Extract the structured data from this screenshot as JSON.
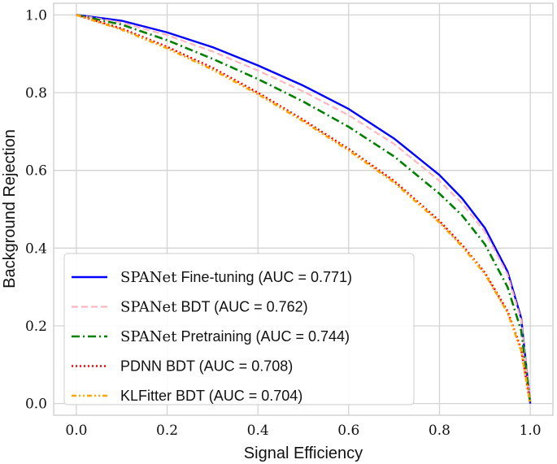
{
  "chart_data": {
    "type": "line",
    "title": "",
    "xlabel": "Signal Efficiency",
    "ylabel": "Background Rejection",
    "xlim": [
      -0.05,
      1.05
    ],
    "ylim": [
      -0.03,
      1.03
    ],
    "xticks": [
      "0.0",
      "0.2",
      "0.4",
      "0.6",
      "0.8",
      "1.0"
    ],
    "yticks": [
      "0.0",
      "0.2",
      "0.4",
      "0.6",
      "0.8",
      "1.0"
    ],
    "grid": true,
    "legend_position": "lower-left",
    "series": [
      {
        "name": "SPANet Fine-tuning (AUC = 0.771)",
        "legend_prefix": "SPANet",
        "legend_suffix": " Fine-tuning (AUC = 0.771)",
        "color": "#0000ff",
        "style": "solid",
        "x": [
          0.0,
          0.1,
          0.2,
          0.3,
          0.4,
          0.5,
          0.6,
          0.7,
          0.8,
          0.85,
          0.9,
          0.95,
          0.98,
          1.0
        ],
        "y": [
          1.0,
          0.985,
          0.955,
          0.917,
          0.87,
          0.818,
          0.758,
          0.682,
          0.588,
          0.528,
          0.452,
          0.34,
          0.22,
          0.0
        ]
      },
      {
        "name": "SPANet BDT (AUC = 0.762)",
        "legend_prefix": "SPANet",
        "legend_suffix": " BDT (AUC = 0.762)",
        "color": "#ffb6c1",
        "style": "dashed",
        "x": [
          0.0,
          0.1,
          0.2,
          0.3,
          0.4,
          0.5,
          0.6,
          0.7,
          0.8,
          0.85,
          0.9,
          0.95,
          0.98,
          1.0
        ],
        "y": [
          1.0,
          0.98,
          0.948,
          0.906,
          0.857,
          0.803,
          0.742,
          0.668,
          0.573,
          0.515,
          0.442,
          0.332,
          0.214,
          0.0
        ]
      },
      {
        "name": "SPANet Pretraining (AUC = 0.744)",
        "legend_prefix": "SPANet",
        "legend_suffix": " Pretraining (AUC = 0.744)",
        "color": "#008000",
        "style": "dashdot",
        "x": [
          0.0,
          0.1,
          0.2,
          0.3,
          0.4,
          0.5,
          0.6,
          0.7,
          0.8,
          0.85,
          0.9,
          0.95,
          0.98,
          1.0
        ],
        "y": [
          1.0,
          0.975,
          0.935,
          0.887,
          0.835,
          0.777,
          0.712,
          0.636,
          0.54,
          0.484,
          0.41,
          0.3,
          0.188,
          0.0
        ]
      },
      {
        "name": "PDNN BDT (AUC = 0.708)",
        "legend_prefix": "",
        "legend_suffix": "PDNN BDT (AUC = 0.708)",
        "color": "#ff0000",
        "style": "dotted",
        "x": [
          0.0,
          0.1,
          0.2,
          0.3,
          0.4,
          0.5,
          0.6,
          0.7,
          0.8,
          0.85,
          0.9,
          0.95,
          0.98,
          1.0
        ],
        "y": [
          1.0,
          0.965,
          0.918,
          0.864,
          0.8,
          0.73,
          0.655,
          0.573,
          0.47,
          0.408,
          0.337,
          0.238,
          0.14,
          0.0
        ]
      },
      {
        "name": "KLFitter BDT (AUC = 0.704)",
        "legend_prefix": "",
        "legend_suffix": "KLFitter BDT (AUC = 0.704)",
        "color": "#ffa500",
        "style": "dashdotdot",
        "x": [
          0.0,
          0.1,
          0.2,
          0.3,
          0.4,
          0.5,
          0.6,
          0.7,
          0.8,
          0.85,
          0.9,
          0.95,
          0.98,
          1.0
        ],
        "y": [
          1.0,
          0.962,
          0.914,
          0.859,
          0.796,
          0.726,
          0.651,
          0.569,
          0.466,
          0.404,
          0.334,
          0.234,
          0.136,
          0.0
        ]
      }
    ]
  }
}
